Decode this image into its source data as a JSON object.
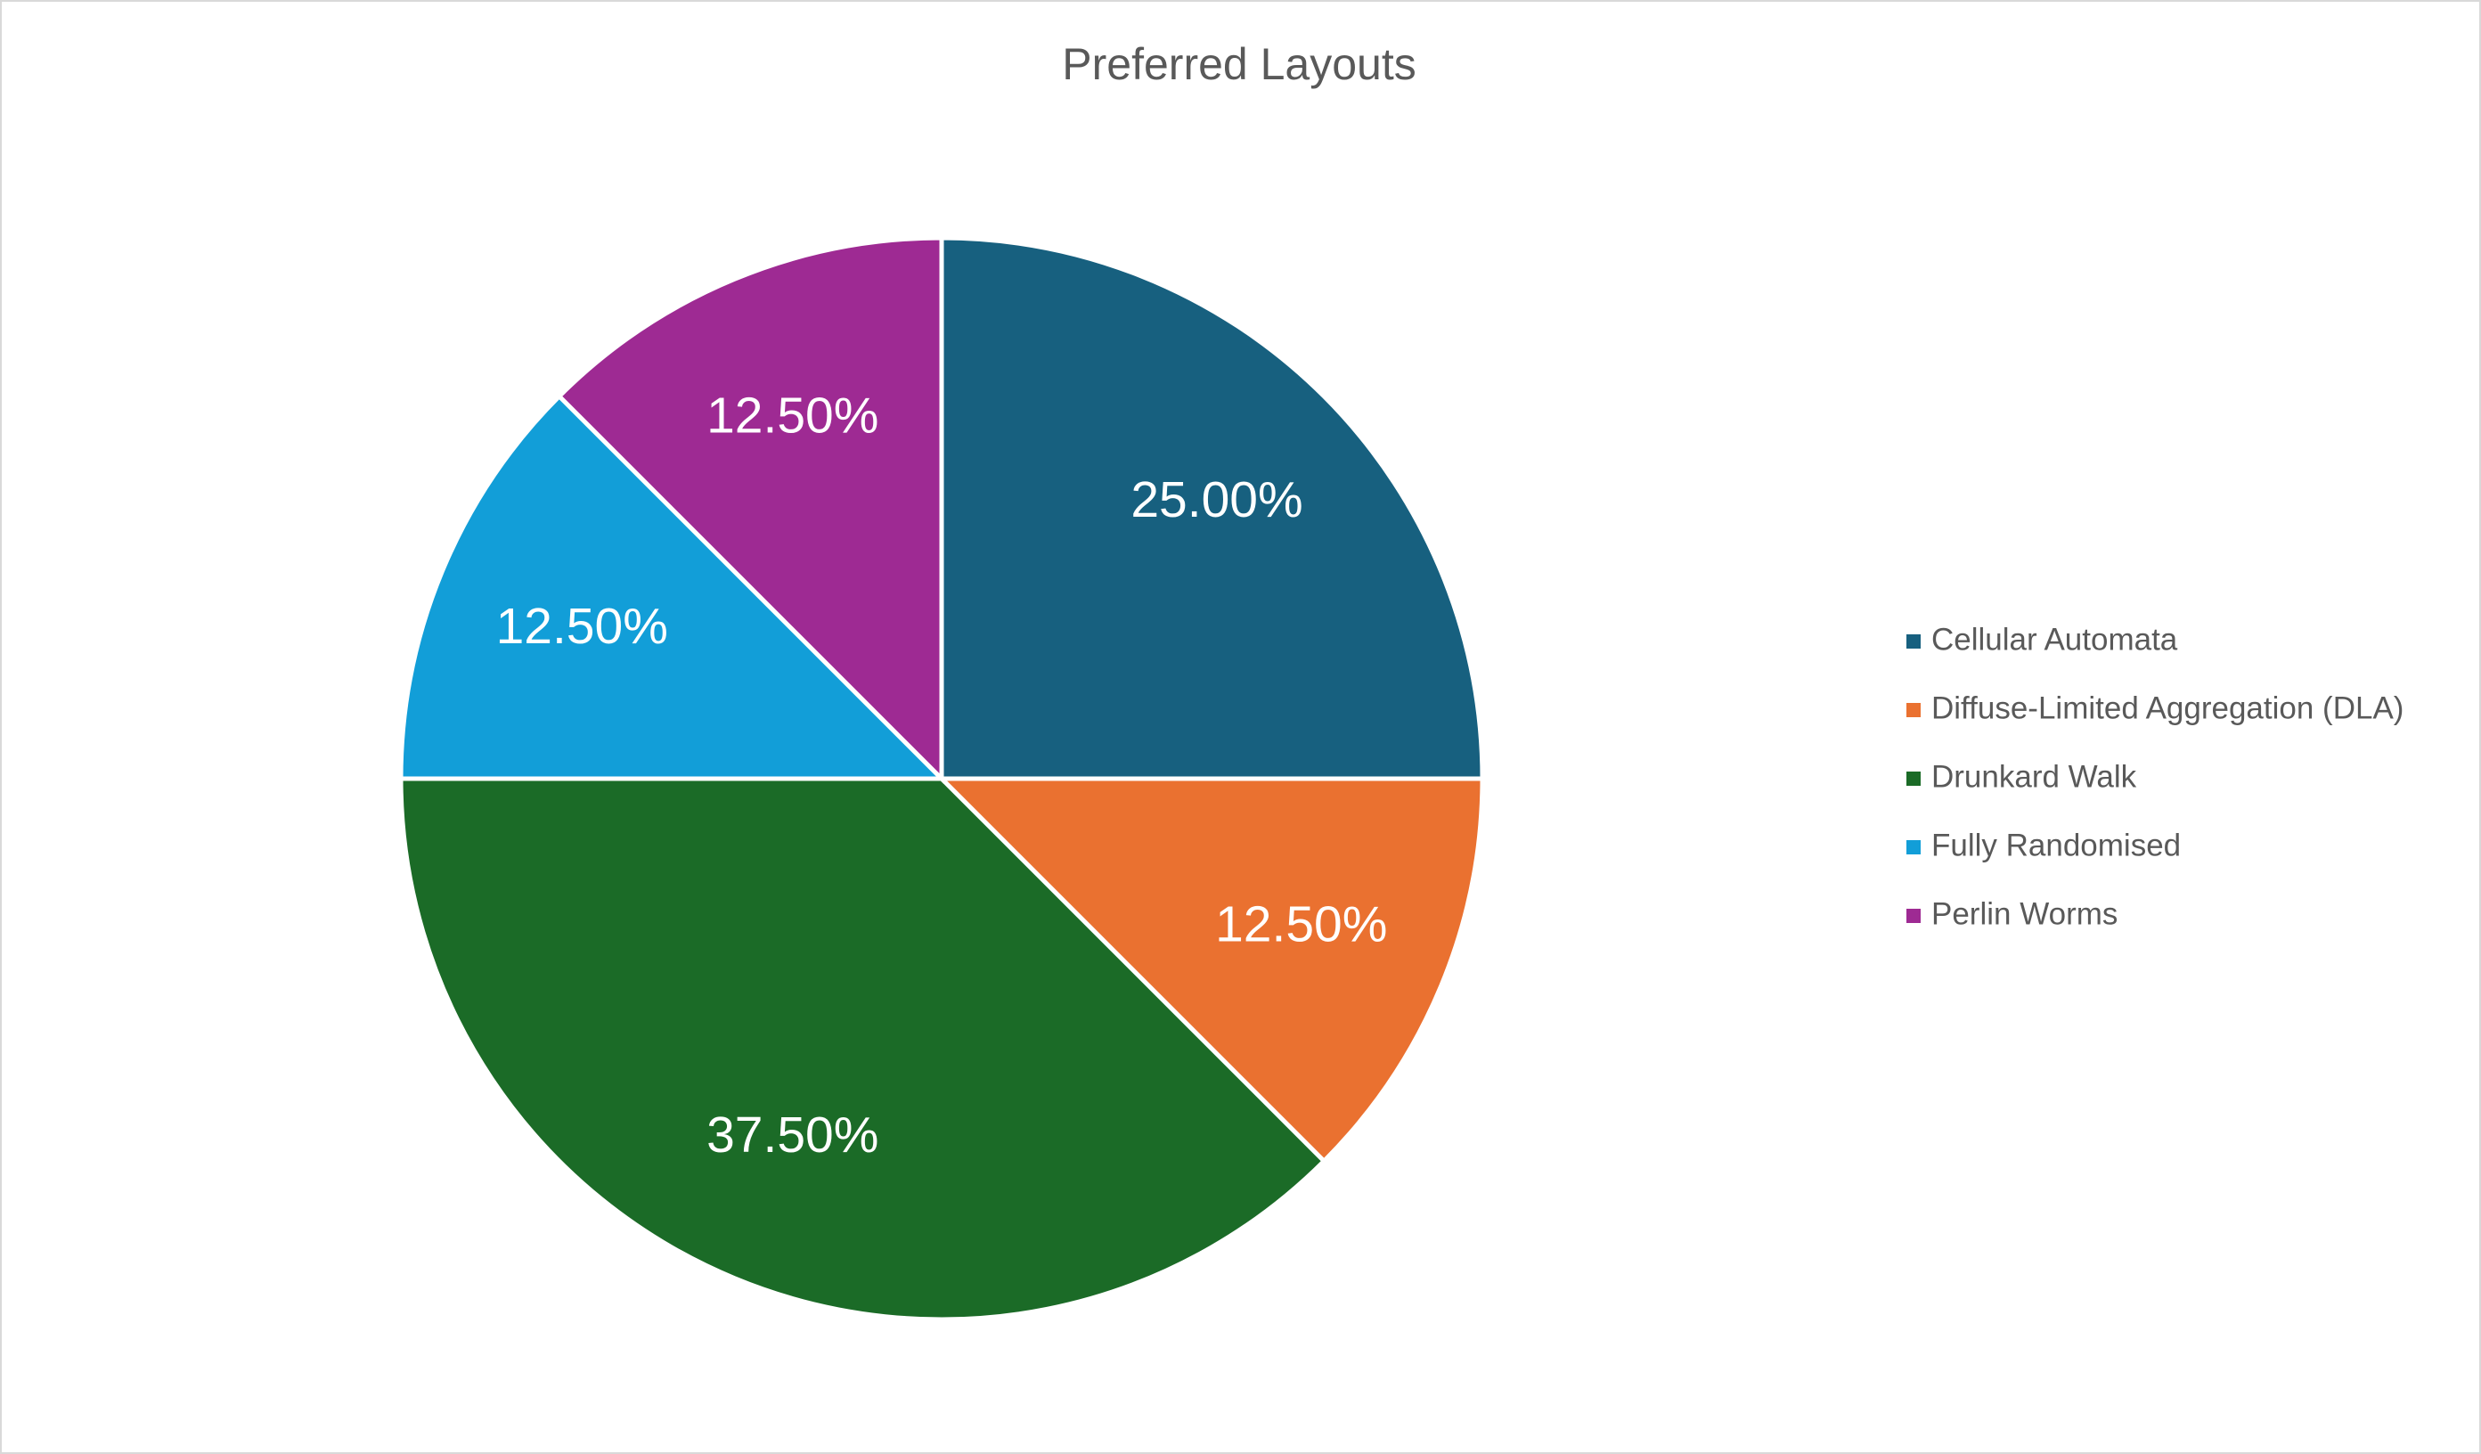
{
  "chart_data": {
    "type": "pie",
    "title": "Preferred Layouts",
    "categories": [
      "Cellular Automata",
      "Diffuse-Limited Aggregation (DLA)",
      "Drunkard Walk",
      "Fully Randomised",
      "Perlin Worms"
    ],
    "values": [
      25,
      12.5,
      37.5,
      12.5,
      12.5
    ],
    "value_labels": [
      "25.00%",
      "12.50%",
      "37.50%",
      "12.50%",
      "12.50%"
    ],
    "colors": [
      "#17607f",
      "#ea7130",
      "#1b6b27",
      "#129ed8",
      "#9e2a93"
    ],
    "legend": "right"
  }
}
